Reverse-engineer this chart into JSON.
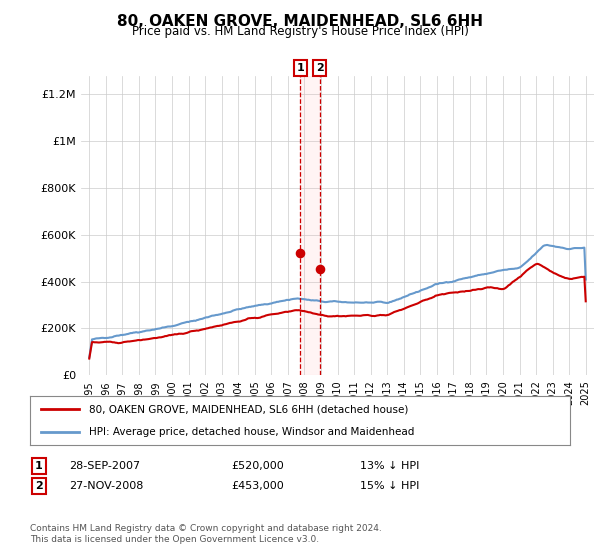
{
  "title": "80, OAKEN GROVE, MAIDENHEAD, SL6 6HH",
  "subtitle": "Price paid vs. HM Land Registry's House Price Index (HPI)",
  "ylabel_ticks": [
    "£0",
    "£200K",
    "£400K",
    "£600K",
    "£800K",
    "£1M",
    "£1.2M"
  ],
  "ytick_values": [
    0,
    200000,
    400000,
    600000,
    800000,
    1000000,
    1200000
  ],
  "ylim": [
    0,
    1280000
  ],
  "xlim": [
    1994.5,
    2025.5
  ],
  "red_color": "#cc0000",
  "blue_color": "#6699cc",
  "transaction1_x": 2007.75,
  "transaction1_y": 520000,
  "transaction2_x": 2008.92,
  "transaction2_y": 453000,
  "legend_red": "80, OAKEN GROVE, MAIDENHEAD, SL6 6HH (detached house)",
  "legend_blue": "HPI: Average price, detached house, Windsor and Maidenhead",
  "table_rows": [
    [
      "1",
      "28-SEP-2007",
      "£520,000",
      "13% ↓ HPI"
    ],
    [
      "2",
      "27-NOV-2008",
      "£453,000",
      "15% ↓ HPI"
    ]
  ],
  "footnote1": "Contains HM Land Registry data © Crown copyright and database right 2024.",
  "footnote2": "This data is licensed under the Open Government Licence v3.0.",
  "background_color": "#ffffff",
  "grid_color": "#cccccc"
}
